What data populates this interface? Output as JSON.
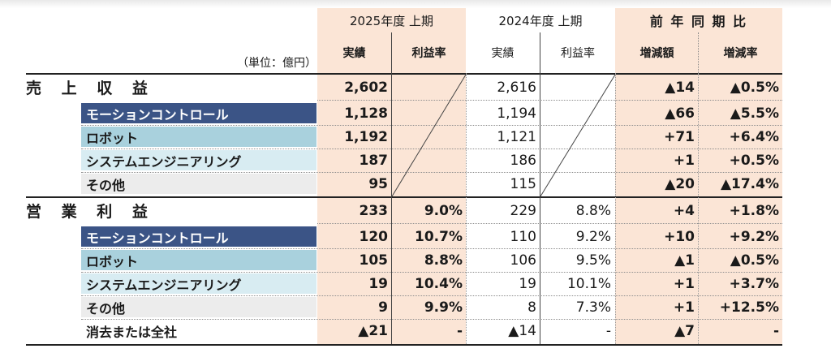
{
  "header": {
    "unit_label": "（単位：億円）",
    "period_2025": "2025年度 上期",
    "period_2024": "2024年度 上期",
    "yoy": "前 年 同 期 比",
    "actual_2025": "実績",
    "margin_2025": "利益率",
    "actual_2024": "実績",
    "margin_2024": "利益率",
    "change_amount": "増減額",
    "change_rate": "増減率"
  },
  "rows": [
    {
      "label": "売 上 収 益",
      "a25": "2,602",
      "m25": "",
      "a24": "2,616",
      "m24": "",
      "chg": "▲14",
      "rate": "▲0.5%"
    },
    {
      "label": "モーションコントロール",
      "a25": "1,128",
      "m25": "",
      "a24": "1,194",
      "m24": "",
      "chg": "▲66",
      "rate": "▲5.5%"
    },
    {
      "label": "ロボット",
      "a25": "1,192",
      "m25": "",
      "a24": "1,121",
      "m24": "",
      "chg": "+71",
      "rate": "+6.4%"
    },
    {
      "label": "システムエンジニアリング",
      "a25": "187",
      "m25": "",
      "a24": "186",
      "m24": "",
      "chg": "+1",
      "rate": "+0.5%"
    },
    {
      "label": "その他",
      "a25": "95",
      "m25": "",
      "a24": "115",
      "m24": "",
      "chg": "▲20",
      "rate": "▲17.4%"
    },
    {
      "label": "営 業 利 益",
      "a25": "233",
      "m25": "9.0%",
      "a24": "229",
      "m24": "8.8%",
      "chg": "+4",
      "rate": "+1.8%"
    },
    {
      "label": "モーションコントロール",
      "a25": "120",
      "m25": "10.7%",
      "a24": "110",
      "m24": "9.2%",
      "chg": "+10",
      "rate": "+9.2%"
    },
    {
      "label": "ロボット",
      "a25": "105",
      "m25": "8.8%",
      "a24": "106",
      "m24": "9.5%",
      "chg": "▲1",
      "rate": "▲0.5%"
    },
    {
      "label": "システムエンジニアリング",
      "a25": "19",
      "m25": "10.4%",
      "a24": "19",
      "m24": "10.1%",
      "chg": "+1",
      "rate": "+3.7%"
    },
    {
      "label": "その他",
      "a25": "9",
      "m25": "9.9%",
      "a24": "8",
      "m24": "7.3%",
      "chg": "+1",
      "rate": "+12.5%"
    },
    {
      "label": "消去または全社",
      "a25": "▲21",
      "m25": "-",
      "a24": "▲14",
      "m24": "-",
      "chg": "▲7",
      "rate": "-"
    }
  ]
}
